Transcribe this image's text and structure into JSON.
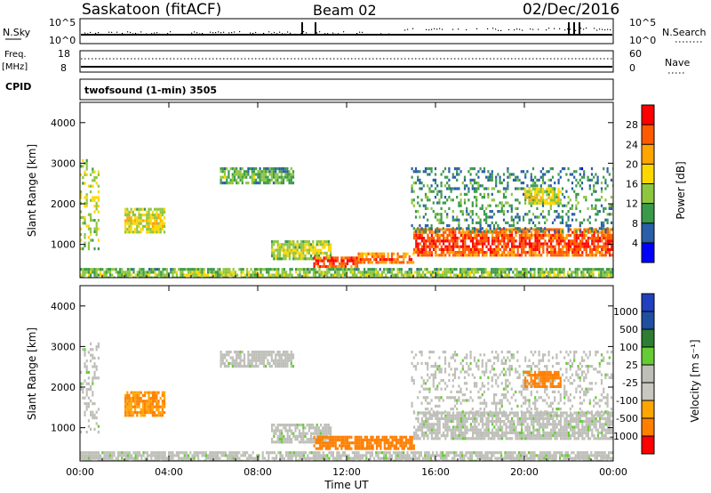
{
  "header": {
    "station": "Saskatoon (fitACF)",
    "beam": "Beam 02",
    "date": "02/Dec/2016"
  },
  "status_panels": {
    "nsky_label": "N.Sky",
    "nsky_ticks": [
      "10^5",
      "10^0"
    ],
    "nsearch_label": "N.Search",
    "nsearch_ticks": [
      "10^5",
      "10^0"
    ],
    "freq_label": "Freq.",
    "freq_unit": "[MHz]",
    "freq_ticks": [
      "18",
      "8"
    ],
    "nave_label": "Nave",
    "nave_ticks": [
      "60",
      "0"
    ],
    "cpid_label": "CPID",
    "cpid_value": "twofsound (1-min) 3505"
  },
  "colorbars": {
    "power": {
      "label": "Power [dB]",
      "ticks": [
        "28",
        "24",
        "20",
        "16",
        "12",
        "8",
        "4"
      ],
      "colors": [
        "#ff0000",
        "#ff5a00",
        "#ffa500",
        "#ffd700",
        "#8dc63f",
        "#3a9a4a",
        "#2a5ea8",
        "#0000ff"
      ]
    },
    "velocity": {
      "label": "Velocity [m s⁻¹]",
      "ticks": [
        "1000",
        "500",
        "100",
        "25",
        "-25",
        "-100",
        "-500",
        "-1000"
      ],
      "colors": [
        "#2040c0",
        "#1e4fa0",
        "#2e7d32",
        "#66cc33",
        "#bfbfb9",
        "#c8c8c0",
        "#ffa500",
        "#ff7f00",
        "#ff0000"
      ]
    }
  },
  "chart_data": [
    {
      "type": "heatmap",
      "name": "Power",
      "xlabel": "",
      "ylabel": "Slant Range [km]",
      "xlim": [
        "00:00",
        "24:00"
      ],
      "ylim": [
        180,
        4500
      ],
      "yticks": [
        1000,
        2000,
        3000,
        4000
      ],
      "xticks": [
        "00:00",
        "04:00",
        "08:00",
        "12:00",
        "16:00",
        "20:00",
        "00:00"
      ],
      "unit": "dB",
      "echo_regions": [
        {
          "t_start": 0.0,
          "t_end": 0.8,
          "range_min": 900,
          "range_max": 3100,
          "power": 12
        },
        {
          "t_start": 2.0,
          "t_end": 3.8,
          "range_min": 1300,
          "range_max": 1900,
          "power": 14
        },
        {
          "t_start": 6.3,
          "t_end": 9.6,
          "range_min": 2500,
          "range_max": 2900,
          "power": 8
        },
        {
          "t_start": 8.6,
          "t_end": 11.3,
          "range_min": 650,
          "range_max": 1100,
          "power": 12
        },
        {
          "t_start": 10.5,
          "t_end": 12.5,
          "range_min": 480,
          "range_max": 700,
          "power": 26
        },
        {
          "t_start": 12.5,
          "t_end": 15.0,
          "range_min": 520,
          "range_max": 800,
          "power": 22
        },
        {
          "t_start": 15.0,
          "t_end": 24.0,
          "range_min": 700,
          "range_max": 1400,
          "power": 24
        },
        {
          "t_start": 14.9,
          "t_end": 24.0,
          "range_min": 1300,
          "range_max": 2900,
          "power": 6
        },
        {
          "t_start": 20.0,
          "t_end": 21.6,
          "range_min": 2000,
          "range_max": 2400,
          "power": 14
        },
        {
          "t_start": 0.0,
          "t_end": 24.0,
          "range_min": 180,
          "range_max": 420,
          "power": 10
        }
      ]
    },
    {
      "type": "heatmap",
      "name": "Velocity",
      "xlabel": "Time UT",
      "ylabel": "Slant Range [km]",
      "xlim": [
        "00:00",
        "24:00"
      ],
      "ylim": [
        180,
        4500
      ],
      "yticks": [
        1000,
        2000,
        3000,
        4000
      ],
      "xticks": [
        "00:00",
        "04:00",
        "08:00",
        "12:00",
        "16:00",
        "20:00",
        "00:00"
      ],
      "unit": "m s-1",
      "echo_regions": [
        {
          "t_start": 0.0,
          "t_end": 0.8,
          "range_min": 900,
          "range_max": 3100,
          "velocity": 0
        },
        {
          "t_start": 2.0,
          "t_end": 3.8,
          "range_min": 1300,
          "range_max": 1900,
          "velocity": -150
        },
        {
          "t_start": 6.3,
          "t_end": 9.6,
          "range_min": 2500,
          "range_max": 2900,
          "velocity": 0
        },
        {
          "t_start": 8.6,
          "t_end": 11.3,
          "range_min": 650,
          "range_max": 1100,
          "velocity": 0
        },
        {
          "t_start": 10.5,
          "t_end": 15.0,
          "range_min": 480,
          "range_max": 800,
          "velocity": -200
        },
        {
          "t_start": 15.0,
          "t_end": 24.0,
          "range_min": 700,
          "range_max": 1400,
          "velocity": 0
        },
        {
          "t_start": 14.9,
          "t_end": 24.0,
          "range_min": 1300,
          "range_max": 2900,
          "velocity": 0
        },
        {
          "t_start": 20.0,
          "t_end": 21.6,
          "range_min": 2000,
          "range_max": 2400,
          "velocity": -300
        },
        {
          "t_start": 0.0,
          "t_end": 24.0,
          "range_min": 180,
          "range_max": 420,
          "velocity": 0
        }
      ]
    }
  ]
}
